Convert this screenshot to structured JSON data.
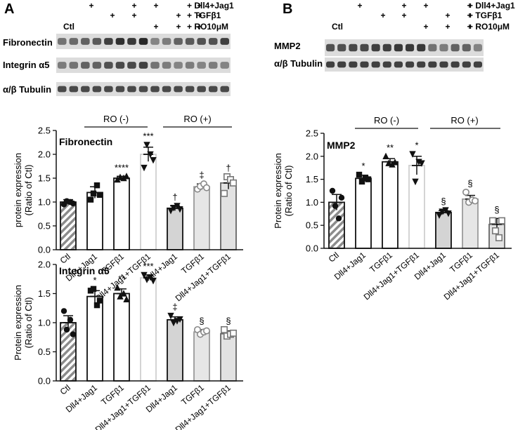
{
  "panels": {
    "a": {
      "letter": "A",
      "header_rows": [
        {
          "label": "Dll4+Jag1",
          "marks": [
            "",
            "+",
            "",
            "+",
            "+",
            "",
            "+"
          ]
        },
        {
          "label": "TGFβ1",
          "marks": [
            "",
            "",
            "+",
            "+",
            "",
            "+",
            "+"
          ]
        },
        {
          "label": "RO10μM",
          "marks": [
            "Ctl",
            "",
            "",
            "",
            "+",
            "+",
            "+"
          ]
        }
      ],
      "blot_labels": [
        "Fibronectin",
        "Integrin α5",
        "α/β Tubulin"
      ]
    },
    "b": {
      "letter": "B",
      "header_rows": [
        {
          "label": "Dll4+Jag1",
          "marks": [
            "",
            "+",
            "",
            "+",
            "+",
            "",
            "+"
          ]
        },
        {
          "label": "TGFβ1",
          "marks": [
            "",
            "",
            "+",
            "+",
            "",
            "+",
            "+"
          ]
        },
        {
          "label": "RO10μM",
          "marks": [
            "Ctl",
            "",
            "",
            "",
            "+",
            "+",
            "+"
          ]
        }
      ],
      "blot_labels": [
        "MMP2",
        "α/β Tubulin"
      ]
    }
  },
  "group_labels": {
    "ro_minus": "RO (-)",
    "ro_plus": "RO (+)"
  },
  "colors": {
    "ctl_hatch": "#8c8c8c",
    "white_bar": "#ffffff",
    "light_bar": "#f2f2f2",
    "gray_bar": "#d6d6d6",
    "ink": "#111111"
  },
  "chart_data": [
    {
      "id": "fibronectin",
      "type": "bar",
      "title": "Fibronectin",
      "ylabel": "protein expression\n(Ratio of Ctl)",
      "ylim": [
        0,
        2.5
      ],
      "yticks": [
        "0.0",
        "0.5",
        "1.0",
        "1.5",
        "2.0",
        "2.5"
      ],
      "categories": [
        "Ctl",
        "Dll4+Jag1",
        "TGFβ1",
        "Dll4+Jag1+TGFβ1",
        "Dll4+Jag1",
        "TGFβ1",
        "Dll4+Jag1+TGFβ1"
      ],
      "values": [
        1.0,
        1.2,
        1.5,
        2.0,
        0.87,
        1.32,
        1.4
      ],
      "errors": [
        0.05,
        0.12,
        0.04,
        0.15,
        0.05,
        0.06,
        0.13
      ],
      "annotations": [
        "",
        "",
        "****",
        "***",
        "†",
        "‡",
        "†"
      ],
      "points": [
        [
          0.95,
          1.02,
          1.0,
          0.97
        ],
        [
          1.05,
          1.18,
          1.35,
          1.15
        ],
        [
          1.47,
          1.52,
          1.5,
          1.54
        ],
        [
          1.72,
          2.2,
          2.0,
          1.88
        ],
        [
          0.82,
          0.88,
          0.92,
          0.85
        ],
        [
          1.27,
          1.33,
          1.38,
          1.3
        ],
        [
          1.18,
          1.53,
          1.47,
          1.4
        ]
      ]
    },
    {
      "id": "integrin",
      "type": "bar",
      "title": "Integrin α5",
      "ylabel": "Protein expression\n(Ratio of Ctl)",
      "ylim": [
        0,
        2.0
      ],
      "yticks": [
        "0.0",
        "0.5",
        "1.0",
        "1.5",
        "2.0"
      ],
      "categories": [
        "Ctl",
        "Dll4+Jag1",
        "TGFβ1",
        "Dll4+Jag1+TGFβ1",
        "Dll4+Jag1",
        "TGFβ1",
        "Dll4+Jag1+TGFβ1"
      ],
      "values": [
        1.0,
        1.45,
        1.5,
        1.77,
        1.05,
        0.84,
        0.81
      ],
      "errors": [
        0.12,
        0.1,
        0.08,
        0.05,
        0.05,
        0.04,
        0.05
      ],
      "annotations": [
        "",
        "*",
        "**",
        "***",
        "‡",
        "§",
        "§"
      ],
      "points": [
        [
          1.2,
          0.88,
          1.05,
          0.8
        ],
        [
          1.55,
          1.58,
          1.3,
          1.38
        ],
        [
          1.6,
          1.45,
          1.5,
          1.4
        ],
        [
          1.82,
          1.74,
          1.78,
          1.72
        ],
        [
          1.12,
          1.0,
          1.03,
          1.06
        ],
        [
          0.88,
          0.8,
          0.84,
          0.86
        ],
        [
          0.88,
          0.77,
          0.8,
          0.82
        ]
      ]
    },
    {
      "id": "mmp2",
      "type": "bar",
      "title": "MMP2",
      "ylabel": "Protein expression\n(Ratio of Ctl)",
      "ylim": [
        0,
        2.5
      ],
      "yticks": [
        "0.0",
        "0.5",
        "1.0",
        "1.5",
        "2.0",
        "2.5"
      ],
      "categories": [
        "Ctl",
        "Dll4+Jag1",
        "TGFβ1",
        "Dll4+Jag1+TGFβ1",
        "Dll4+Jag1",
        "TGFβ1",
        "Dll4+Jag1+TGFβ1"
      ],
      "values": [
        1.0,
        1.52,
        1.88,
        1.8,
        0.78,
        1.07,
        0.52
      ],
      "errors": [
        0.17,
        0.07,
        0.07,
        0.2,
        0.04,
        0.08,
        0.13
      ],
      "annotations": [
        "",
        "*",
        "**",
        "*",
        "§",
        "§",
        "§"
      ],
      "points": [
        [
          1.25,
          0.92,
          0.65,
          1.1
        ],
        [
          1.6,
          1.45,
          1.52,
          1.5
        ],
        [
          2.0,
          1.85,
          1.82,
          1.87
        ],
        [
          2.05,
          1.45,
          1.88,
          1.85
        ],
        [
          0.72,
          0.8,
          0.83,
          0.76
        ],
        [
          1.22,
          1.0,
          1.05,
          1.03
        ],
        [
          0.6,
          0.38,
          0.23,
          0.6
        ]
      ]
    }
  ]
}
